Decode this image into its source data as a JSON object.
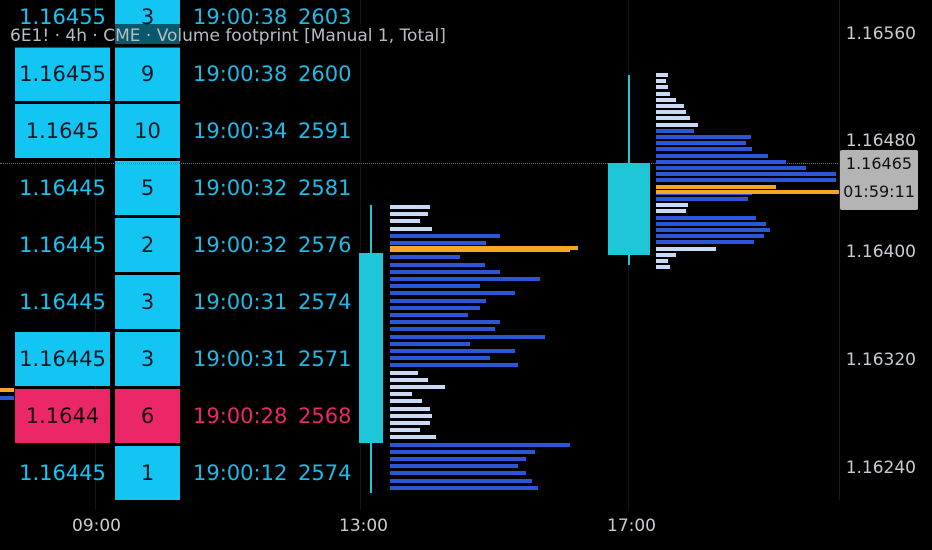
{
  "legend": "6E1! · 4h · CME · Volume footprint [Manual 1, Total]",
  "price_axis": {
    "labels": [
      "1.16560",
      "1.16480",
      "1.16400",
      "1.16320",
      "1.16240"
    ],
    "current_price": "1.16465",
    "countdown": "01:59:11"
  },
  "time_axis": {
    "labels": [
      "09:00",
      "13:00",
      "17:00"
    ]
  },
  "tape": [
    {
      "price": "1.16455",
      "size": "3",
      "time": "19:00:38",
      "id": "2603",
      "side": "buy"
    },
    {
      "price": "1.16455",
      "size": "9",
      "time": "19:00:38",
      "id": "2600",
      "side": "buy"
    },
    {
      "price": "1.1645",
      "size": "10",
      "time": "19:00:34",
      "id": "2591",
      "side": "buy"
    },
    {
      "price": "1.16445",
      "size": "5",
      "time": "19:00:32",
      "id": "2581",
      "side": "buy"
    },
    {
      "price": "1.16445",
      "size": "2",
      "time": "19:00:32",
      "id": "2576",
      "side": "buy"
    },
    {
      "price": "1.16445",
      "size": "3",
      "time": "19:00:31",
      "id": "2574",
      "side": "buy"
    },
    {
      "price": "1.16445",
      "size": "3",
      "time": "19:00:31",
      "id": "2571",
      "side": "buy"
    },
    {
      "price": "1.1644",
      "size": "6",
      "time": "19:00:28",
      "id": "2568",
      "side": "sell"
    },
    {
      "price": "1.16445",
      "size": "1",
      "time": "19:00:12",
      "id": "2574",
      "side": "buy"
    }
  ],
  "colors": {
    "buy": "#12c5f2",
    "sell": "#ec2767",
    "poc": "#f5a623",
    "profile_dark": "#2b56d6",
    "profile_light": "#c9daf6",
    "candle": "#1fc6d8"
  }
}
